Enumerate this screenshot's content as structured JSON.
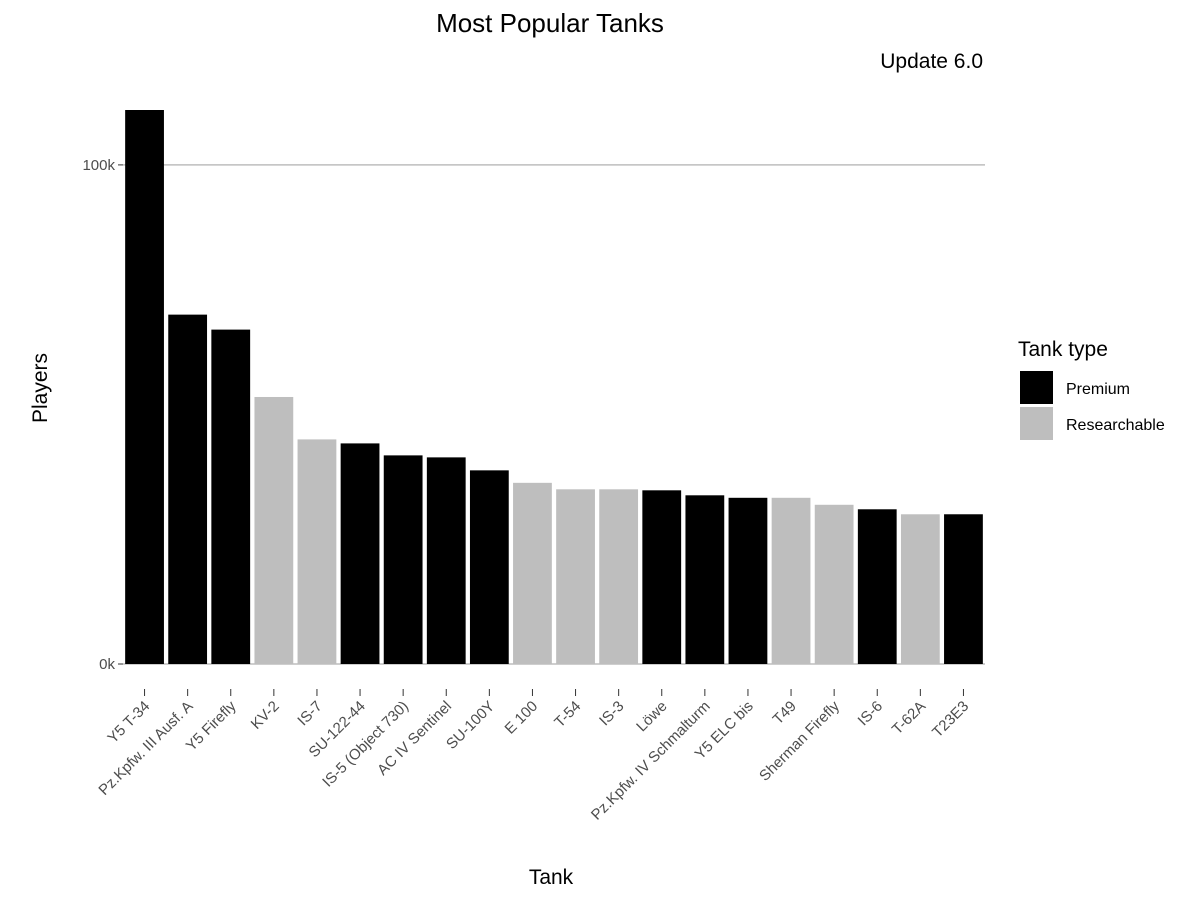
{
  "chart_data": {
    "type": "bar",
    "title": "Most Popular Tanks",
    "subtitle": "Update 6.0",
    "xlabel": "Tank",
    "ylabel": "Players",
    "ylim": [
      0,
      111000
    ],
    "y_ticks": [
      {
        "value": 0,
        "label": "0k"
      },
      {
        "value": 100000,
        "label": "100k"
      }
    ],
    "grid": "horizontal major only",
    "legend": {
      "title": "Tank type",
      "position": "right",
      "entries": [
        {
          "name": "Premium",
          "color": "#000000"
        },
        {
          "name": "Researchable",
          "color": "#bebebe"
        }
      ]
    },
    "categories": [
      "Y5 T-34",
      "Pz.Kpfw. III Ausf. A",
      "Y5 Firefly",
      "KV-2",
      "IS-7",
      "SU-122-44",
      "IS-5 (Object 730)",
      "AC IV Sentinel",
      "SU-100Y",
      "E 100",
      "T-54",
      "IS-3",
      "Löwe",
      "Pz.Kpfw. IV Schmalturm",
      "Y5 ELC bis",
      "T49",
      "Sherman Firefly",
      "IS-6",
      "T-62A",
      "T23E3"
    ],
    "values": [
      111000,
      70000,
      67000,
      53500,
      45000,
      44200,
      41800,
      41400,
      38800,
      36300,
      35000,
      35000,
      34800,
      33800,
      33300,
      33300,
      31900,
      31000,
      30000,
      30000
    ],
    "types": [
      "Premium",
      "Premium",
      "Premium",
      "Researchable",
      "Researchable",
      "Premium",
      "Premium",
      "Premium",
      "Premium",
      "Researchable",
      "Researchable",
      "Researchable",
      "Premium",
      "Premium",
      "Premium",
      "Researchable",
      "Researchable",
      "Premium",
      "Researchable",
      "Premium"
    ]
  }
}
